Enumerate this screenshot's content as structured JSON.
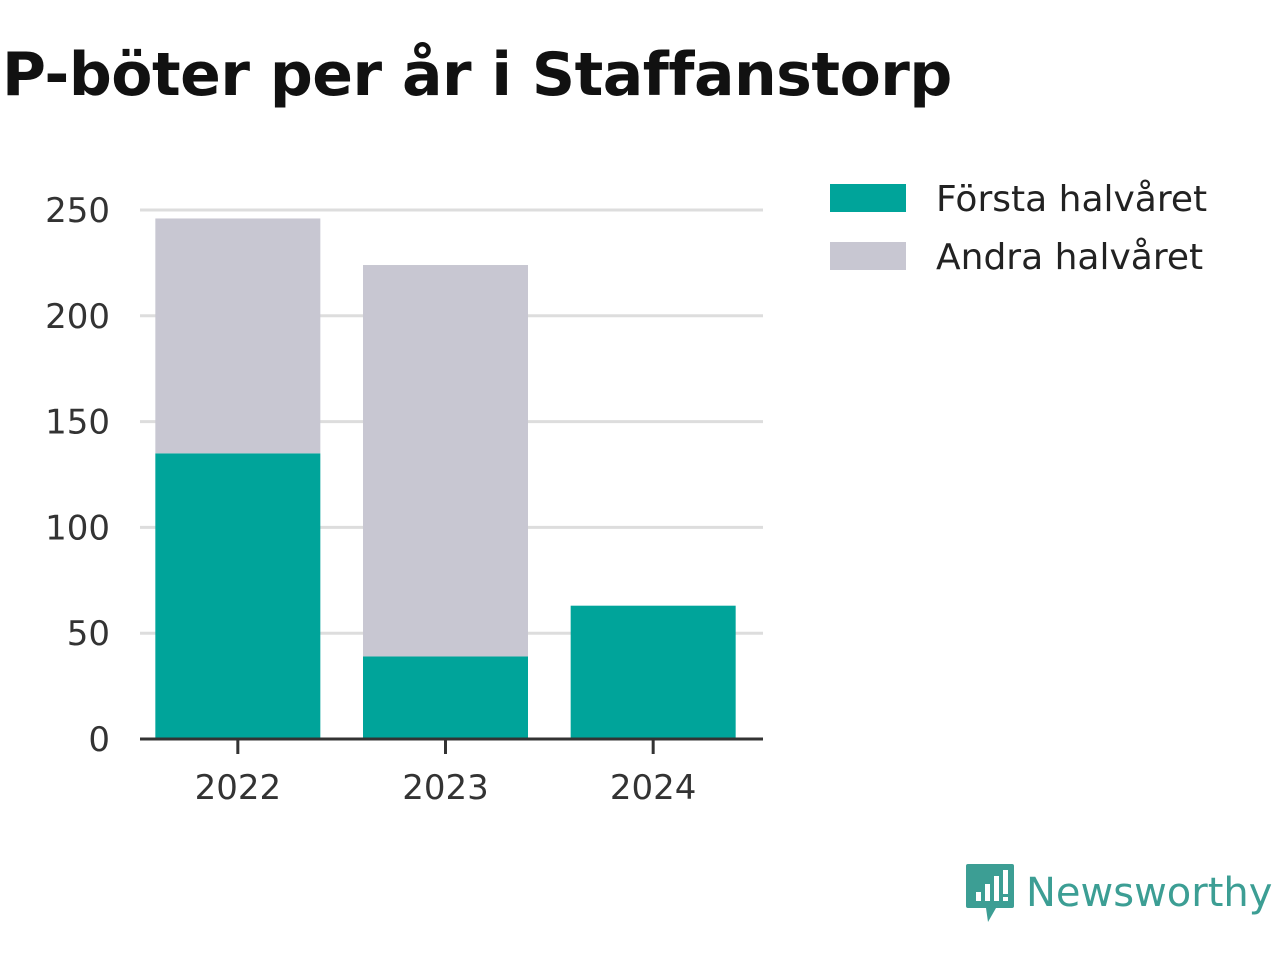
{
  "chart_data": {
    "type": "bar",
    "stacked": true,
    "title": "P-böter per år i Staffanstorp",
    "categories": [
      "2022",
      "2023",
      "2024"
    ],
    "series": [
      {
        "name": "Första halvåret",
        "values": [
          135,
          39,
          63
        ],
        "color": "#00a49a"
      },
      {
        "name": "Andra halvåret",
        "values": [
          111,
          185,
          0
        ],
        "color": "#c8c7d2"
      }
    ],
    "ylim": [
      0,
      250
    ],
    "yticks": [
      "0",
      "50",
      "100",
      "150",
      "200",
      "250"
    ],
    "grid": true,
    "legend_position": "right"
  },
  "branding": {
    "name": "Newsworthy",
    "icon": "newsworthy-logo-icon",
    "color": "#3c9e94"
  }
}
